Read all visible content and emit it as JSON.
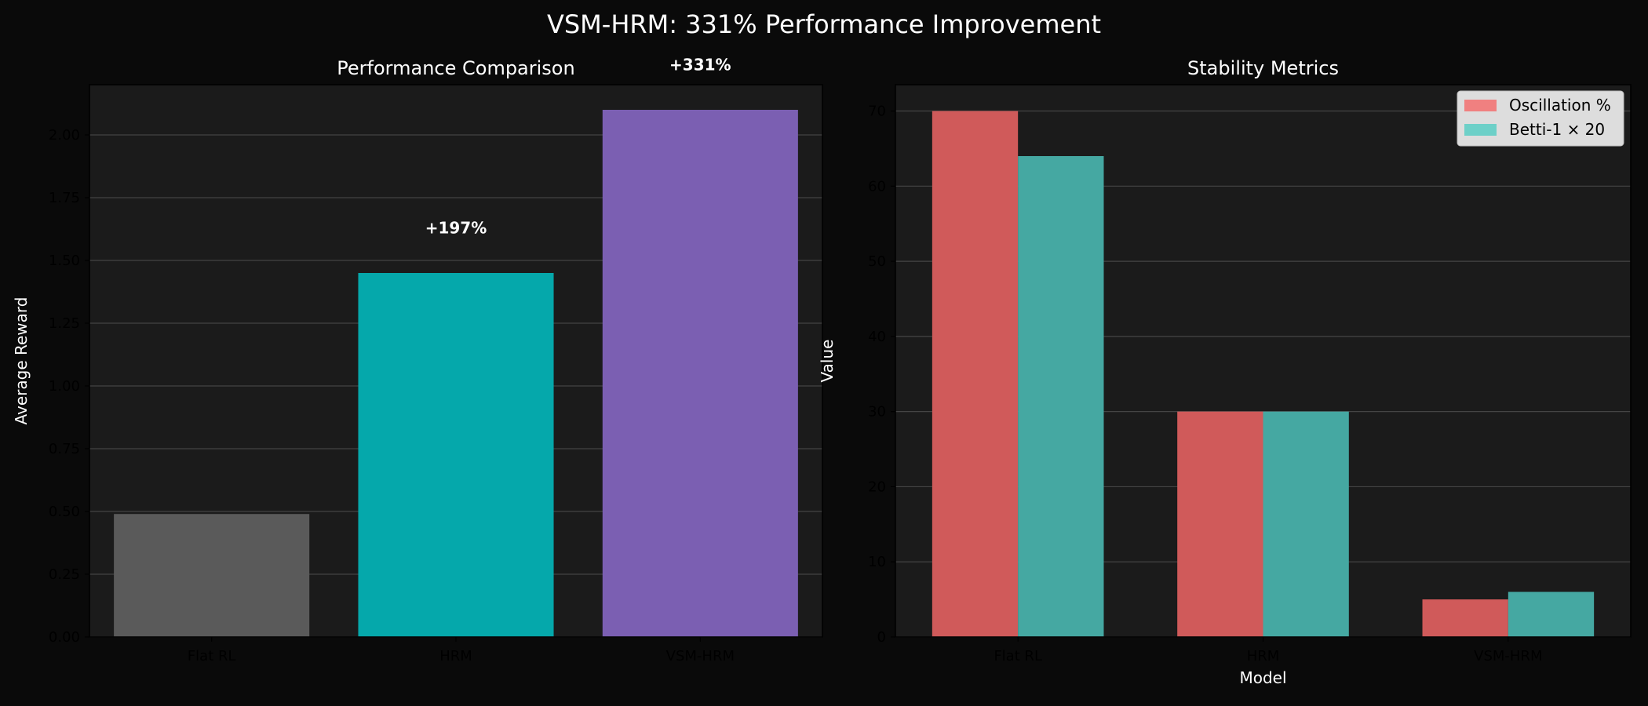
{
  "figure": {
    "background": "#0a0a0a",
    "axes_background": "#1b1b1b",
    "title": "VSM-HRM: 331% Performance Improvement"
  },
  "chart_data": [
    {
      "type": "bar",
      "title": "Performance Comparison",
      "xlabel": "",
      "ylabel": "Average Reward",
      "categories": [
        "Flat RL",
        "HRM",
        "VSM-HRM"
      ],
      "values": [
        0.49,
        1.45,
        2.1
      ],
      "colors": [
        "#5a5a5a",
        "#05a8ab",
        "#7b5fb2"
      ],
      "annotations": [
        "",
        "+197%",
        "+331%"
      ],
      "ylim": [
        0,
        2.2
      ],
      "yticks": [
        0.0,
        0.25,
        0.5,
        0.75,
        1.0,
        1.25,
        1.5,
        1.75,
        2.0
      ],
      "ytick_labels": [
        "0.00",
        "0.25",
        "0.50",
        "0.75",
        "1.00",
        "1.25",
        "1.50",
        "1.75",
        "2.00"
      ],
      "grid": true
    },
    {
      "type": "bar",
      "title": "Stability Metrics",
      "xlabel": "Model",
      "ylabel": "Value",
      "categories": [
        "Flat RL",
        "HRM",
        "VSM-HRM"
      ],
      "series": [
        {
          "name": "Oscillation %",
          "values": [
            70,
            30,
            5
          ],
          "color": "#d05a5a",
          "legend_color": "#f08080"
        },
        {
          "name": "Betti-1 × 20",
          "values": [
            64,
            30,
            6
          ],
          "color": "#45a8a2",
          "legend_color": "#6dd0c8"
        }
      ],
      "ylim": [
        0,
        73.5
      ],
      "yticks": [
        0,
        10,
        20,
        30,
        40,
        50,
        60,
        70
      ],
      "ytick_labels": [
        "0",
        "10",
        "20",
        "30",
        "40",
        "50",
        "60",
        "70"
      ],
      "legend": "upper right",
      "grid": true
    }
  ]
}
